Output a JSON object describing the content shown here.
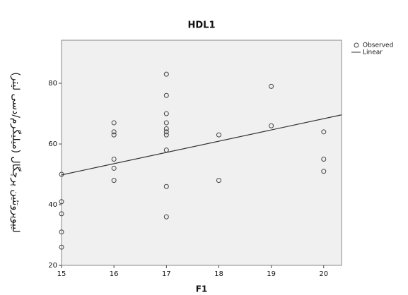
{
  "chart_data": {
    "type": "scatter",
    "title": "HDL1",
    "x_label": "F1",
    "y_label": "لیپوپروتئین پرچگال (میلیگرم/دسی لیتر)",
    "xlim": [
      15,
      20.34
    ],
    "ylim": [
      20,
      94.2
    ],
    "xticks": [
      15,
      16,
      17,
      18,
      19,
      20
    ],
    "yticks": [
      20,
      40,
      60,
      80
    ],
    "series": [
      {
        "name": "Observed",
        "color": "#444444",
        "x": [
          15,
          15,
          15,
          15,
          15,
          16,
          16,
          16,
          16,
          16,
          16,
          17,
          17,
          17,
          17,
          17,
          17,
          17,
          17,
          17,
          17,
          18,
          18,
          19,
          19,
          20,
          20,
          20
        ],
        "values": [
          50,
          41,
          37,
          31,
          26,
          67,
          64,
          63,
          55,
          52,
          48,
          83,
          76,
          70,
          67,
          65,
          64,
          63,
          58,
          46,
          36,
          63,
          48,
          79,
          66,
          64,
          55,
          51
        ]
      },
      {
        "name": "Linear",
        "color": "#333333",
        "x": [
          15,
          20.34
        ],
        "values": [
          49.8,
          69.6
        ]
      }
    ]
  }
}
